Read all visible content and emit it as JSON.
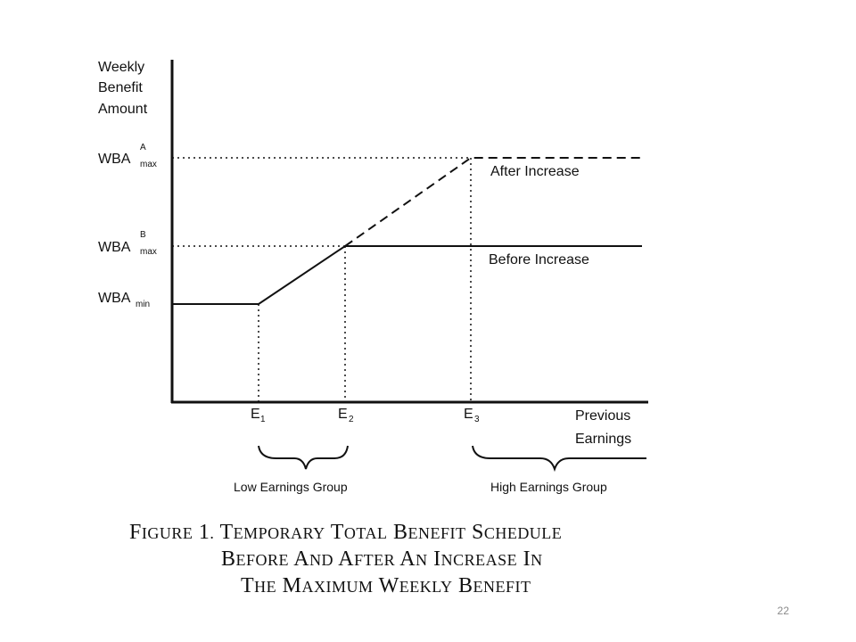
{
  "y_axis_title": [
    "Weekly",
    "Benefit",
    "Amount"
  ],
  "x_axis_title": [
    "Previous",
    "Earnings"
  ],
  "y_levels": [
    {
      "base": "WBA",
      "sup": "A",
      "sub": "max"
    },
    {
      "base": "WBA",
      "sup": "B",
      "sub": "max"
    },
    {
      "base": "WBA",
      "sup": "",
      "sub": "min"
    }
  ],
  "x_points": [
    {
      "base": "E",
      "sub": "1"
    },
    {
      "base": "E",
      "sub": "2"
    },
    {
      "base": "E",
      "sub": "3"
    }
  ],
  "curves": {
    "after": "After Increase",
    "before": "Before Increase"
  },
  "groups": {
    "low": "Low Earnings Group",
    "high": "High Earnings Group"
  },
  "caption": [
    "Figure 1. Temporary Total Benefit Schedule",
    "Before and After an Increase in",
    "the Maximum Weekly Benefit"
  ],
  "page_number": "22"
}
